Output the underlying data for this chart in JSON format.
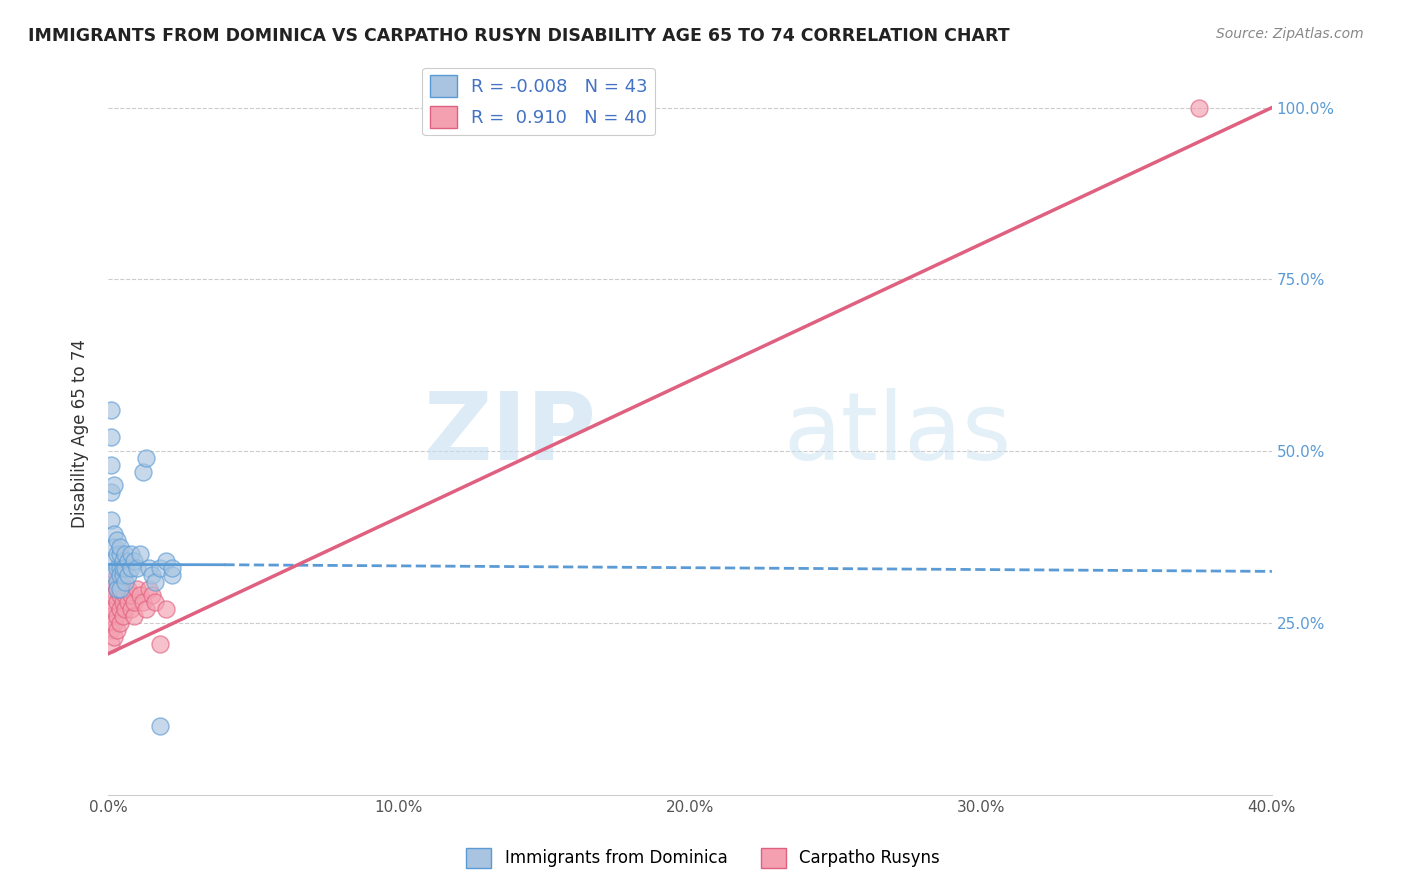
{
  "title": "IMMIGRANTS FROM DOMINICA VS CARPATHO RUSYN DISABILITY AGE 65 TO 74 CORRELATION CHART",
  "source": "Source: ZipAtlas.com",
  "ylabel": "Disability Age 65 to 74",
  "legend_label_blue": "Immigrants from Dominica",
  "legend_label_pink": "Carpatho Rusyns",
  "R_blue": -0.008,
  "N_blue": 43,
  "R_pink": 0.91,
  "N_pink": 40,
  "xlim": [
    0.0,
    0.4
  ],
  "ylim": [
    0.0,
    1.05
  ],
  "xtick_labels": [
    "0.0%",
    "10.0%",
    "20.0%",
    "30.0%",
    "40.0%"
  ],
  "xtick_vals": [
    0.0,
    0.1,
    0.2,
    0.3,
    0.4
  ],
  "ytick_labels": [
    "25.0%",
    "50.0%",
    "75.0%",
    "100.0%"
  ],
  "ytick_vals": [
    0.25,
    0.5,
    0.75,
    1.0
  ],
  "color_blue": "#a8c4e0",
  "color_pink": "#f4a0b0",
  "color_blue_line": "#5b9bd5",
  "color_pink_line": "#e06080",
  "watermark_zip": "ZIP",
  "watermark_atlas": "atlas",
  "blue_dots_x": [
    0.001,
    0.001,
    0.001,
    0.001,
    0.001,
    0.002,
    0.002,
    0.002,
    0.002,
    0.002,
    0.003,
    0.003,
    0.003,
    0.003,
    0.003,
    0.004,
    0.004,
    0.004,
    0.004,
    0.004,
    0.005,
    0.005,
    0.005,
    0.006,
    0.006,
    0.006,
    0.007,
    0.007,
    0.008,
    0.008,
    0.009,
    0.01,
    0.011,
    0.012,
    0.013,
    0.014,
    0.015,
    0.016,
    0.018,
    0.02,
    0.022,
    0.022,
    0.018
  ],
  "blue_dots_y": [
    0.56,
    0.52,
    0.48,
    0.44,
    0.4,
    0.38,
    0.36,
    0.34,
    0.32,
    0.45,
    0.33,
    0.31,
    0.35,
    0.3,
    0.37,
    0.33,
    0.35,
    0.32,
    0.3,
    0.36,
    0.34,
    0.32,
    0.33,
    0.35,
    0.31,
    0.33,
    0.34,
    0.32,
    0.33,
    0.35,
    0.34,
    0.33,
    0.35,
    0.47,
    0.49,
    0.33,
    0.32,
    0.31,
    0.33,
    0.34,
    0.32,
    0.33,
    0.1
  ],
  "pink_dots_x": [
    0.001,
    0.001,
    0.001,
    0.001,
    0.001,
    0.002,
    0.002,
    0.002,
    0.002,
    0.002,
    0.003,
    0.003,
    0.003,
    0.003,
    0.003,
    0.004,
    0.004,
    0.004,
    0.004,
    0.005,
    0.005,
    0.005,
    0.006,
    0.006,
    0.007,
    0.007,
    0.008,
    0.008,
    0.009,
    0.009,
    0.01,
    0.011,
    0.012,
    0.013,
    0.014,
    0.015,
    0.016,
    0.018,
    0.02,
    0.375
  ],
  "pink_dots_y": [
    0.28,
    0.26,
    0.24,
    0.22,
    0.3,
    0.27,
    0.25,
    0.29,
    0.31,
    0.23,
    0.28,
    0.26,
    0.3,
    0.24,
    0.32,
    0.27,
    0.29,
    0.25,
    0.31,
    0.28,
    0.26,
    0.3,
    0.27,
    0.29,
    0.28,
    0.3,
    0.27,
    0.29,
    0.26,
    0.28,
    0.3,
    0.29,
    0.28,
    0.27,
    0.3,
    0.29,
    0.28,
    0.22,
    0.27,
    1.0
  ],
  "blue_line_y0": 0.335,
  "blue_line_y1": 0.325,
  "pink_line_x0": 0.0,
  "pink_line_y0": 0.205,
  "pink_line_x1": 0.4,
  "pink_line_y1": 1.0
}
